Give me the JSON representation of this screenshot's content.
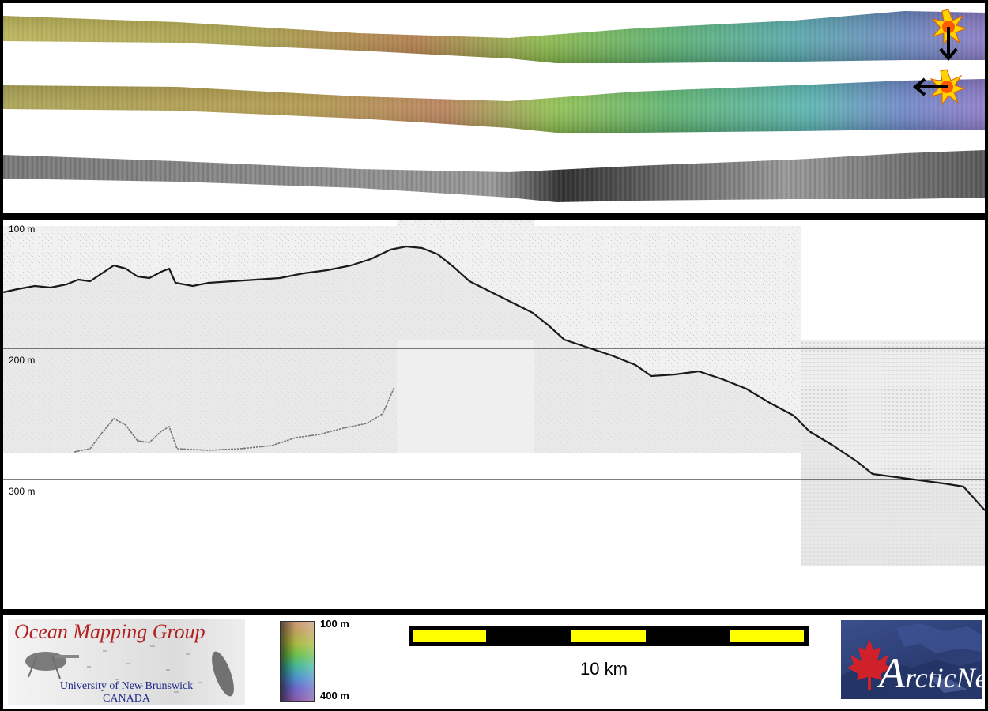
{
  "depth_axis": {
    "labels": [
      "100 m",
      "200 m",
      "300 m"
    ]
  },
  "colorbar": {
    "top_label": "100 m",
    "bottom_label": "400 m"
  },
  "scale_bar": {
    "label": "10 km"
  },
  "logos": {
    "ocean_mapping": {
      "title": "Ocean Mapping Group",
      "line1": "University of New Brunswick",
      "line2": "CANADA"
    },
    "arcticnet": {
      "text_a": "A",
      "text_rest": "rcticNet"
    }
  },
  "colors": {
    "frame": "#000000",
    "scale_fill": "#ffff00",
    "omg_red": "#b22020",
    "omg_blue": "#1f2a8a",
    "arcticnet_blue": "#2c3d73",
    "maple_red": "#d0202a"
  },
  "icons": [
    "sun-marker-icon",
    "arrow-down-icon",
    "arrow-left-icon",
    "maple-leaf-icon"
  ]
}
